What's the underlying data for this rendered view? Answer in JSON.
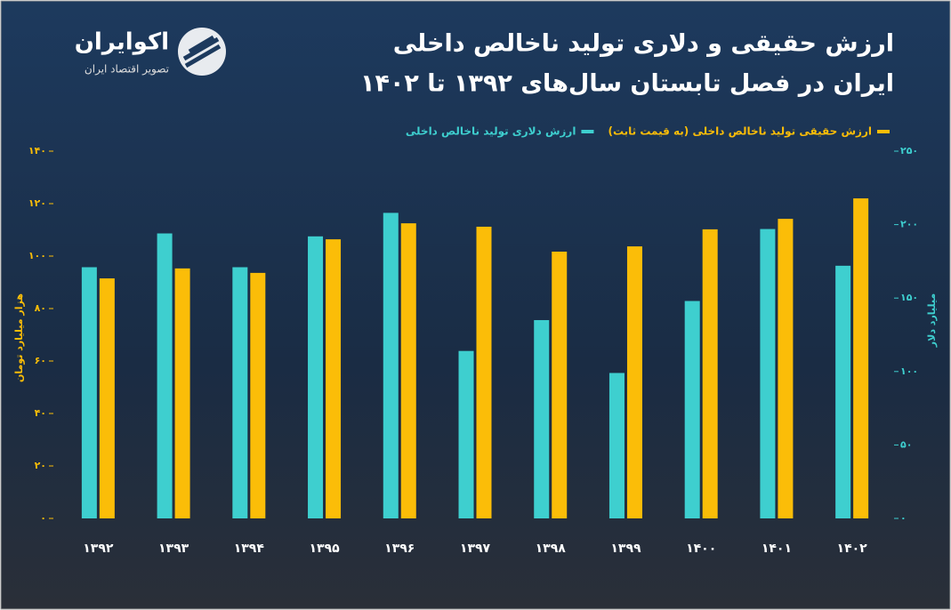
{
  "logo": {
    "name": "اکوایران",
    "tagline": "تصویر اقتصاد ایران"
  },
  "chart_data": {
    "type": "bar",
    "title": [
      "ارزش حقیقی و دلاری تولید ناخالص داخلی",
      "ایران در فصل تابستان سال‌های ۱۳۹۲ تا ۱۴۰۲"
    ],
    "y_label": "هزار میلیارد تومان",
    "y2_label": "میلیارد دلار",
    "categories": [
      "۱۳۹۲",
      "۱۳۹۳",
      "۱۳۹۴",
      "۱۳۹۵",
      "۱۳۹۶",
      "۱۳۹۷",
      "۱۳۹۸",
      "۱۳۹۹",
      "۱۴۰۰",
      "۱۴۰۱",
      "۱۴۰۲"
    ],
    "series": [
      {
        "name": "ارزش دلاری تولید ناخالص داخلی",
        "color": "#3ecfcf",
        "axis": "y2",
        "values": [
          171,
          194,
          171,
          192,
          208,
          114,
          135,
          99,
          148,
          197,
          172
        ]
      },
      {
        "name": "ارزش حقیقی تولید ناخالص داخلی (به قیمت ثابت)",
        "color": "#fbbd08",
        "axis": "y",
        "values": [
          91.5,
          95.3,
          93.6,
          106.4,
          112.5,
          111.2,
          101.7,
          103.7,
          110.2,
          114.2,
          122
        ]
      }
    ],
    "ylim": [
      0,
      140
    ],
    "yticks": [
      {
        "value": 0,
        "label": "۰"
      },
      {
        "value": 20,
        "label": "۲۰"
      },
      {
        "value": 40,
        "label": "۴۰"
      },
      {
        "value": 60,
        "label": "۶۰"
      },
      {
        "value": 80,
        "label": "۸۰"
      },
      {
        "value": 100,
        "label": "۱۰۰"
      },
      {
        "value": 120,
        "label": "۱۲۰"
      },
      {
        "value": 140,
        "label": "۱۴۰"
      }
    ],
    "y2lim": [
      0,
      250
    ],
    "y2ticks": [
      {
        "value": 0,
        "label": "۰"
      },
      {
        "value": 50,
        "label": "۵۰"
      },
      {
        "value": 100,
        "label": "۱۰۰"
      },
      {
        "value": 150,
        "label": "۱۵۰"
      },
      {
        "value": 200,
        "label": "۲۰۰"
      },
      {
        "value": 250,
        "label": "۲۵۰"
      }
    ]
  }
}
